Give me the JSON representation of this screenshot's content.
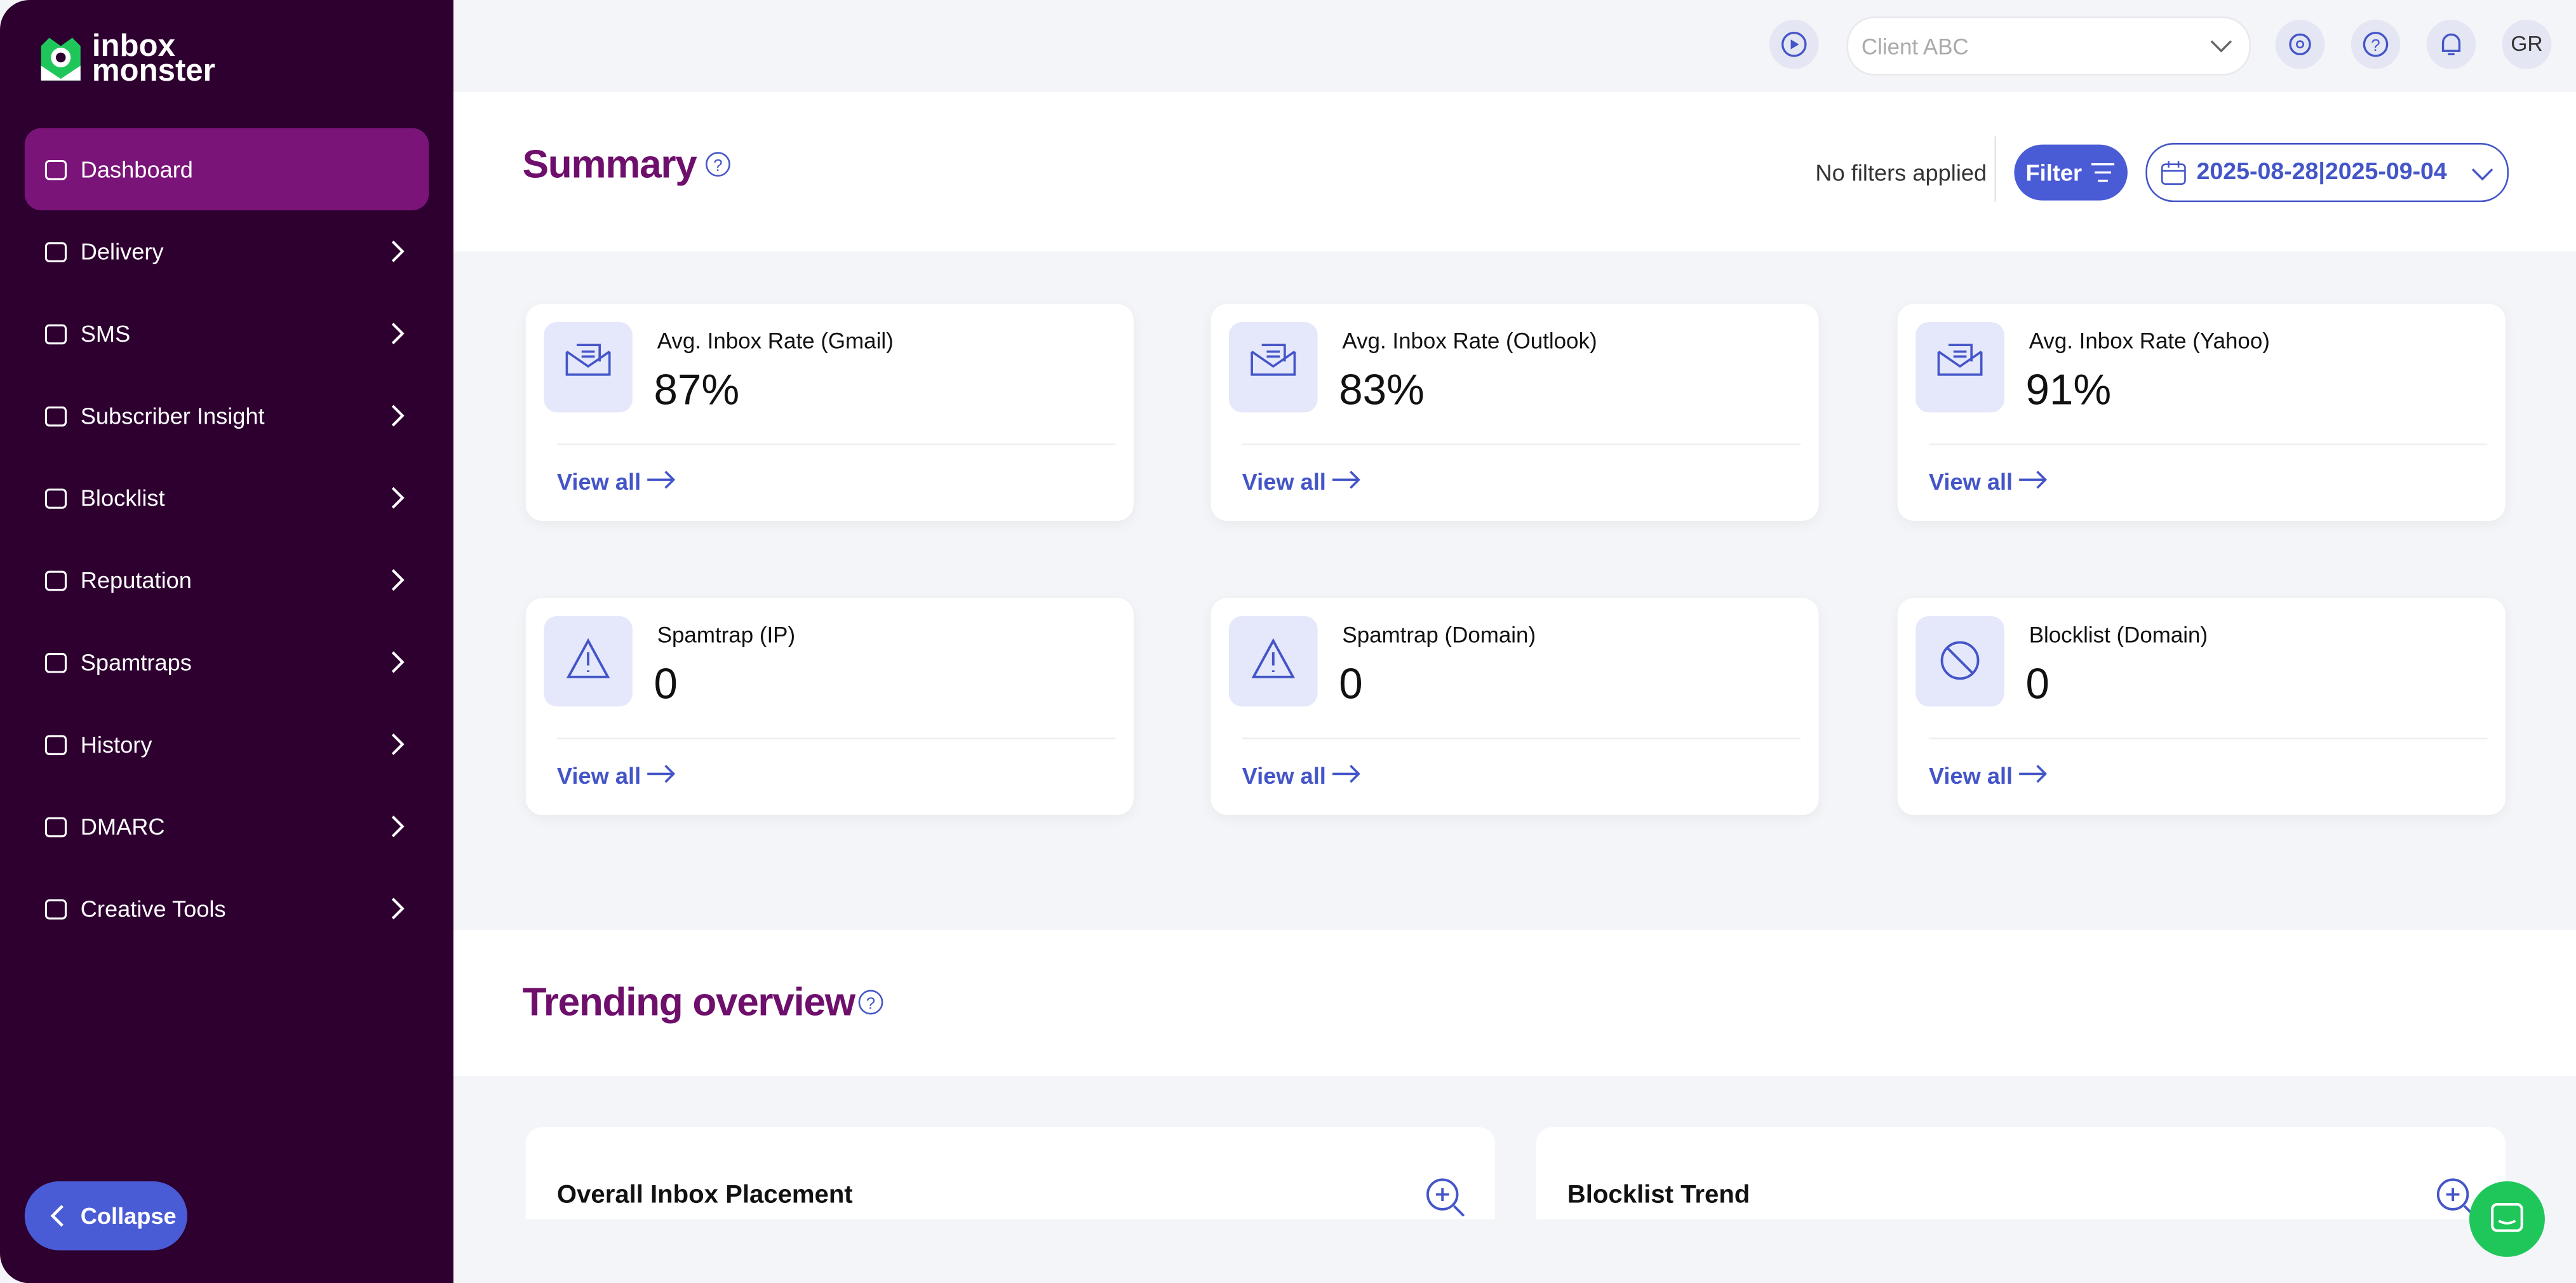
{
  "sidebar": {
    "logo": [
      "inbox",
      "monster"
    ],
    "nav": [
      {
        "label": "Dashboard",
        "active": true
      },
      {
        "label": "Delivery"
      },
      {
        "label": "SMS"
      },
      {
        "label": "Subscriber Insight"
      },
      {
        "label": "Blocklist"
      },
      {
        "label": "Reputation"
      },
      {
        "label": "Spamtraps"
      },
      {
        "label": "History"
      },
      {
        "label": "DMARC"
      },
      {
        "label": "Creative Tools"
      }
    ],
    "collapse": "Collapse"
  },
  "header": {
    "client": "Client ABC",
    "avatar": "GR"
  },
  "summary": {
    "title": "Summary",
    "filters": "No filters applied",
    "filter_button": "Filter",
    "date_range": "2025-08-28|2025-09-04",
    "cards": [
      {
        "label": "Avg. Inbox Rate (Gmail)",
        "value": "87%",
        "link": "View all",
        "icon": "mail"
      },
      {
        "label": "Avg. Inbox Rate (Outlook)",
        "value": "83%",
        "link": "View all",
        "icon": "mail"
      },
      {
        "label": "Avg. Inbox Rate (Yahoo)",
        "value": "91%",
        "link": "View all",
        "icon": "mail"
      },
      {
        "label": "Spamtrap (IP)",
        "value": "0",
        "link": "View all",
        "icon": "warn"
      },
      {
        "label": "Spamtrap (Domain)",
        "value": "0",
        "link": "View all",
        "icon": "warn"
      },
      {
        "label": "Blocklist (Domain)",
        "value": "0",
        "link": "View all",
        "icon": "block"
      }
    ]
  },
  "trending": {
    "title": "Trending overview",
    "panels": [
      "Overall Inbox Placement",
      "Blocklist Trend"
    ]
  }
}
